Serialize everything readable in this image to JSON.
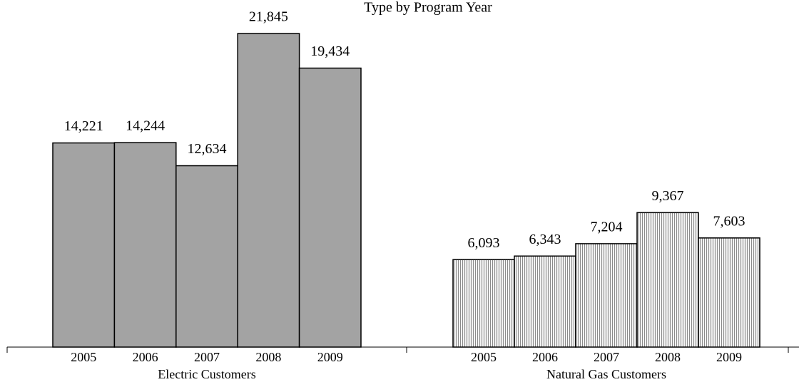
{
  "chart_data": {
    "type": "bar",
    "title": "Type by Program Year",
    "groups": [
      {
        "name": "Electric Customers",
        "color": "#a3a3a3",
        "categories": [
          "2005",
          "2006",
          "2007",
          "2008",
          "2009"
        ],
        "values": [
          14221,
          14244,
          12634,
          21845,
          19434
        ],
        "value_labels": [
          "14,221",
          "14,244",
          "12,634",
          "21,845",
          "19,434"
        ]
      },
      {
        "name": "Natural Gas Customers",
        "color": "#f2f2f2",
        "pattern": "vertical",
        "categories": [
          "2005",
          "2006",
          "2007",
          "2008",
          "2009"
        ],
        "values": [
          6093,
          6343,
          7204,
          9367,
          7603
        ],
        "value_labels": [
          "6,093",
          "6,343",
          "7,204",
          "9,367",
          "7,603"
        ]
      }
    ]
  }
}
